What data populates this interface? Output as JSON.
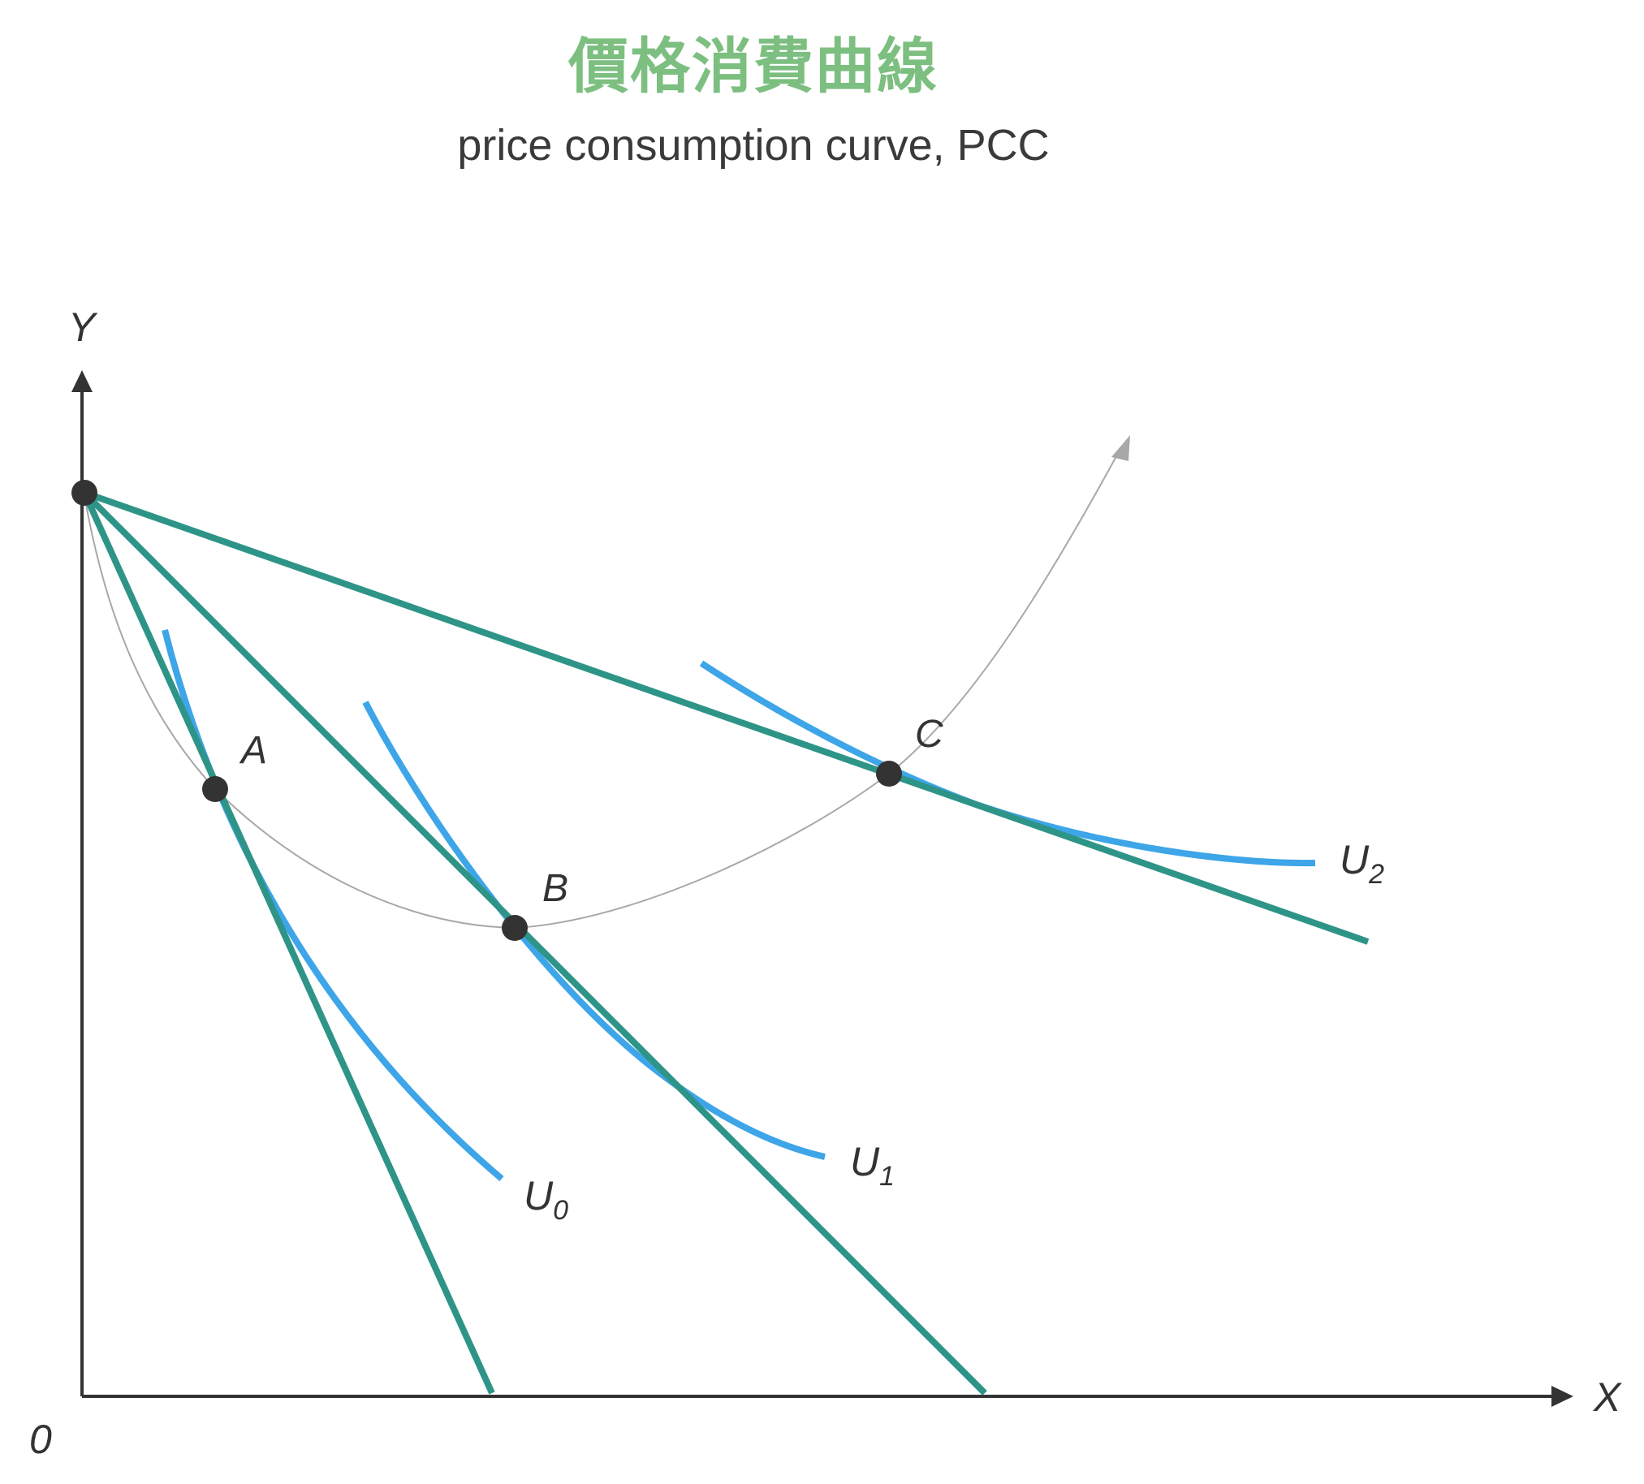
{
  "title": "價格消費曲線",
  "subtitle": "price consumption curve, PCC",
  "axes": {
    "y_label": "Y",
    "x_label": "X",
    "origin_label": "0"
  },
  "points": {
    "A": "A",
    "B": "B",
    "C": "C"
  },
  "curves": {
    "u0": {
      "base": "U",
      "sub": "0"
    },
    "u1": {
      "base": "U",
      "sub": "1"
    },
    "u2": {
      "base": "U",
      "sub": "2"
    }
  },
  "colors": {
    "title": "#7cbf80",
    "budget_line": "#2f9488",
    "indifference_curve": "#3da5e8",
    "pcc_curve": "#a8a8a8",
    "axis": "#333333",
    "point": "#333333"
  }
}
